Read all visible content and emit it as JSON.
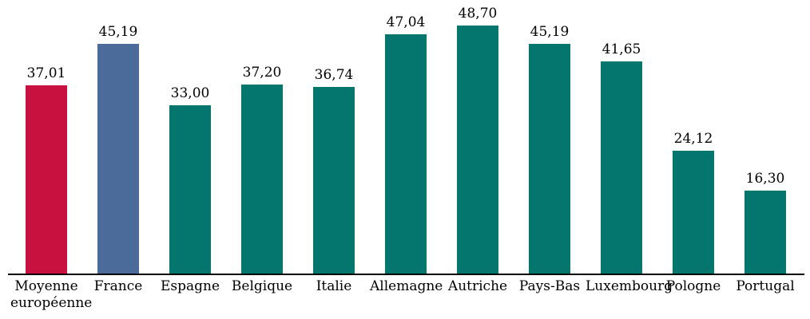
{
  "chart_data": {
    "type": "bar",
    "title": "",
    "xlabel": "",
    "ylabel": "",
    "categories": [
      "Moyenne européenne",
      "France",
      "Espagne",
      "Belgique",
      "Italie",
      "Allemagne",
      "Autriche",
      "Pays-Bas",
      "Luxembourg",
      "Pologne",
      "Portugal"
    ],
    "values": [
      37.01,
      45.19,
      33.0,
      37.2,
      36.74,
      47.04,
      48.7,
      45.19,
      41.65,
      24.12,
      16.3
    ],
    "value_labels": [
      "37,01",
      "45,19",
      "33,00",
      "37,20",
      "36,74",
      "47,04",
      "48,70",
      "45,19",
      "41,65",
      "24,12",
      "16,30"
    ],
    "bar_colors": [
      "#C8113E",
      "#4B6C9B",
      "#04766E",
      "#04766E",
      "#04766E",
      "#04766E",
      "#04766E",
      "#04766E",
      "#04766E",
      "#04766E",
      "#04766E"
    ],
    "colors": {
      "highlight_average": "#C8113E",
      "highlight_france": "#4B6C9B",
      "default_series": "#04766E",
      "axis": "#000000",
      "text": "#000000"
    },
    "ylim": [
      0,
      52
    ],
    "grid": false,
    "legend": null,
    "y_axis_visible": false,
    "data_labels_visible": true,
    "decimal_separator": ","
  }
}
